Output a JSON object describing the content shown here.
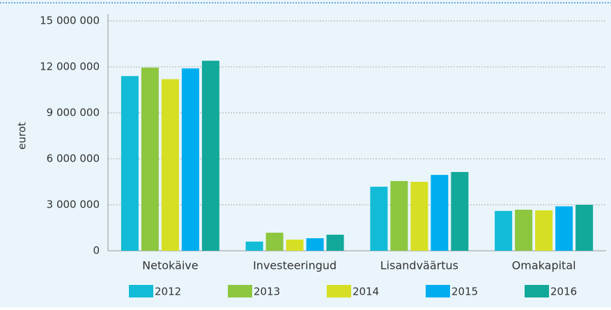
{
  "chart_data": {
    "type": "bar",
    "ylabel": "eurot",
    "categories": [
      "Netokäive",
      "Investeeringud",
      "Lisandväärtus",
      "Omakapital"
    ],
    "series": [
      {
        "name": "2012",
        "color": "#13bcd6",
        "values": [
          11400000,
          600000,
          4180000,
          2600000
        ]
      },
      {
        "name": "2013",
        "color": "#8dc63f",
        "values": [
          11950000,
          1180000,
          4550000,
          2680000
        ]
      },
      {
        "name": "2014",
        "color": "#d6df23",
        "values": [
          11200000,
          730000,
          4500000,
          2640000
        ]
      },
      {
        "name": "2015",
        "color": "#00aeef",
        "values": [
          11900000,
          820000,
          4950000,
          2900000
        ]
      },
      {
        "name": "2016",
        "color": "#12a89a",
        "values": [
          12400000,
          1050000,
          5140000,
          3000000
        ]
      }
    ],
    "ylim": [
      0,
      15000000
    ],
    "yticks": [
      0,
      {
        "value": 3000000,
        "label": "3 000 000"
      },
      {
        "value": 6000000,
        "label": "6 000 000"
      },
      {
        "value": 9000000,
        "label": "9 000 000"
      },
      {
        "value": 12000000,
        "label": "12 000 000"
      },
      {
        "value": 15000000,
        "label": "15 000 000"
      }
    ],
    "grid": true
  }
}
